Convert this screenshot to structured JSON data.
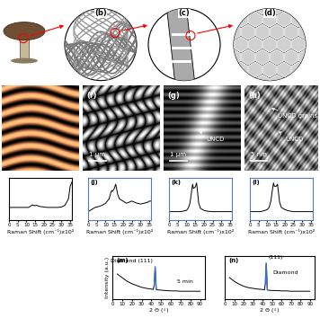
{
  "figure_panels": {
    "diagrams": [
      {
        "label": "(b)"
      },
      {
        "label": "(c)"
      },
      {
        "label": "(d)"
      }
    ],
    "images": [
      {
        "annotations": []
      },
      {
        "label": "(f)",
        "scale_bar": "1 μm",
        "annotations": []
      },
      {
        "label": "(g)",
        "scale_bar": "1 μm",
        "annotations": [
          "UNCD"
        ]
      },
      {
        "label": "(h)",
        "scale_bar": "5 nm",
        "annotations": [
          "UNCD",
          "UNCD grains"
        ]
      }
    ]
  },
  "chart_data": [
    {
      "type": "line",
      "xlabel": "Raman Shift (cm⁻¹)x10²",
      "x": [
        0,
        2,
        4,
        6,
        8,
        10,
        11,
        12,
        13,
        13.5,
        14,
        15,
        15.8,
        16.5,
        17,
        18,
        20,
        22,
        25,
        28,
        30,
        32,
        34,
        35,
        36
      ],
      "series": [
        {
          "color": "#000000",
          "values": [
            3,
            3,
            3,
            3,
            3,
            3,
            3,
            3.2,
            3.5,
            3.6,
            3.5,
            3.4,
            3.5,
            3.4,
            3.3,
            3.2,
            3.1,
            3,
            3,
            3,
            3.1,
            3.5,
            5,
            8,
            9
          ]
        }
      ],
      "xlim": [
        0,
        36
      ],
      "xticks": [
        0,
        5,
        10,
        15,
        20,
        25,
        30,
        35
      ],
      "ylim": [
        0,
        10
      ],
      "yticks": [],
      "tick_labels": "x"
    },
    {
      "type": "line",
      "label": "(j)",
      "xlabel": "Raman Shift (cm⁻¹)x10²",
      "x": [
        0,
        2,
        4,
        6,
        8,
        10,
        11,
        12,
        13,
        13.5,
        14,
        15,
        15.8,
        16.5,
        17,
        18,
        20,
        22,
        25,
        28,
        30,
        32,
        34,
        35,
        36
      ],
      "series": [
        {
          "color": "#000000",
          "values": [
            2,
            2.5,
            3,
            3.2,
            3.5,
            4,
            4.5,
            5,
            6.5,
            7,
            6.8,
            7.5,
            8.5,
            7,
            6,
            5,
            4.5,
            4,
            4.5,
            4,
            3.8,
            4,
            4.2,
            4.5,
            4.5
          ]
        }
      ],
      "xlim": [
        0,
        36
      ],
      "xticks": [
        0,
        5,
        10,
        15,
        20,
        25,
        30,
        35
      ],
      "ylim": [
        0,
        10
      ],
      "yticks": [],
      "tick_labels": "x"
    },
    {
      "type": "line",
      "label": "(k)",
      "xlabel": "Raman Shift (cm⁻¹)x10²",
      "x": [
        0,
        2,
        4,
        6,
        8,
        10,
        11,
        12,
        13,
        13.5,
        14,
        15,
        15.8,
        16.5,
        17,
        18,
        20,
        22,
        25,
        28,
        30,
        32,
        34,
        35,
        36
      ],
      "series": [
        {
          "color": "#000000",
          "values": [
            2,
            2,
            2,
            2,
            2.1,
            2.3,
            2.8,
            4,
            7,
            8.5,
            7.5,
            7.8,
            8.8,
            6,
            4,
            2.8,
            2.3,
            2.1,
            2,
            2,
            2,
            2,
            2,
            2,
            2
          ]
        }
      ],
      "xlim": [
        0,
        36
      ],
      "xticks": [
        0,
        5,
        10,
        15,
        20,
        25,
        30,
        35
      ],
      "ylim": [
        0,
        10
      ],
      "yticks": [],
      "tick_labels": "x"
    },
    {
      "type": "line",
      "label": "(l)",
      "xlabel": "Raman Shift (cm⁻¹)x10²",
      "x": [
        0,
        2,
        4,
        6,
        8,
        10,
        11,
        12,
        13,
        13.5,
        14,
        15,
        15.8,
        16.5,
        17,
        18,
        20,
        22,
        25,
        28,
        30,
        32,
        34,
        35,
        36
      ],
      "series": [
        {
          "color": "#000000",
          "values": [
            2,
            2,
            2,
            2,
            2.2,
            2.5,
            3,
            4.5,
            7.5,
            8.8,
            8,
            8,
            8.5,
            6,
            4.2,
            3,
            2.5,
            2.2,
            2,
            2,
            2,
            2,
            2,
            2,
            2
          ]
        }
      ],
      "xlim": [
        0,
        36
      ],
      "xticks": [
        0,
        5,
        10,
        15,
        20,
        25,
        30,
        35
      ],
      "ylim": [
        0,
        10
      ],
      "yticks": [],
      "tick_labels": "x"
    },
    {
      "type": "line",
      "label": "(m)",
      "xlabel": "2 Θ (◦)",
      "ylabel": "Intensity (a.u.)",
      "x": [
        5,
        10,
        15,
        20,
        25,
        30,
        35,
        40,
        42,
        43,
        43.9,
        45,
        46,
        50,
        55,
        60,
        65,
        70,
        75,
        80,
        85,
        90
      ],
      "series": [
        {
          "color": "#000000",
          "values": [
            7,
            6,
            5,
            4.3,
            3.8,
            3.3,
            3,
            2.8,
            2.7,
            4,
            9,
            2.7,
            2.6,
            2.5,
            2.4,
            2.3,
            2.3,
            2.2,
            2.2,
            2.2,
            2.2,
            2.2
          ]
        }
      ],
      "peak": {
        "x": 43.9,
        "color": "#3a6fd0"
      },
      "annotations": [
        {
          "text": "Diamond (111)",
          "x": 43.9,
          "y": 9
        },
        {
          "text": "5 min"
        }
      ],
      "xlim": [
        0,
        95
      ],
      "xticks": [
        0,
        10,
        20,
        30,
        40,
        50,
        60,
        70,
        80,
        90
      ],
      "ylim": [
        0,
        12
      ],
      "yticks": [],
      "tick_labels": "x"
    },
    {
      "type": "line",
      "label": "(n)",
      "xlabel": "2 Θ (◦)",
      "x": [
        5,
        10,
        15,
        20,
        25,
        30,
        35,
        40,
        42,
        43,
        43.9,
        45,
        46,
        50,
        55,
        60,
        65,
        70,
        75,
        80,
        85,
        90
      ],
      "series": [
        {
          "color": "#000000",
          "values": [
            6,
            5,
            4.2,
            3.6,
            3.2,
            3,
            2.8,
            2.7,
            2.6,
            4.5,
            10,
            2.6,
            2.5,
            2.4,
            2.4,
            2.3,
            2.3,
            2.2,
            2.2,
            2.2,
            2.2,
            2.2
          ]
        }
      ],
      "peak": {
        "x": 43.9,
        "color": "#3a6fd0"
      },
      "annotations": [
        {
          "text": "(111)",
          "x": 43.9,
          "y": 10
        },
        {
          "text": "Diamond"
        }
      ],
      "xlim": [
        0,
        95
      ],
      "xticks": [
        0,
        10,
        20,
        30,
        40,
        50,
        60,
        70,
        80,
        90
      ],
      "ylim": [
        0,
        12
      ],
      "yticks": [],
      "tick_labels": "x"
    }
  ]
}
